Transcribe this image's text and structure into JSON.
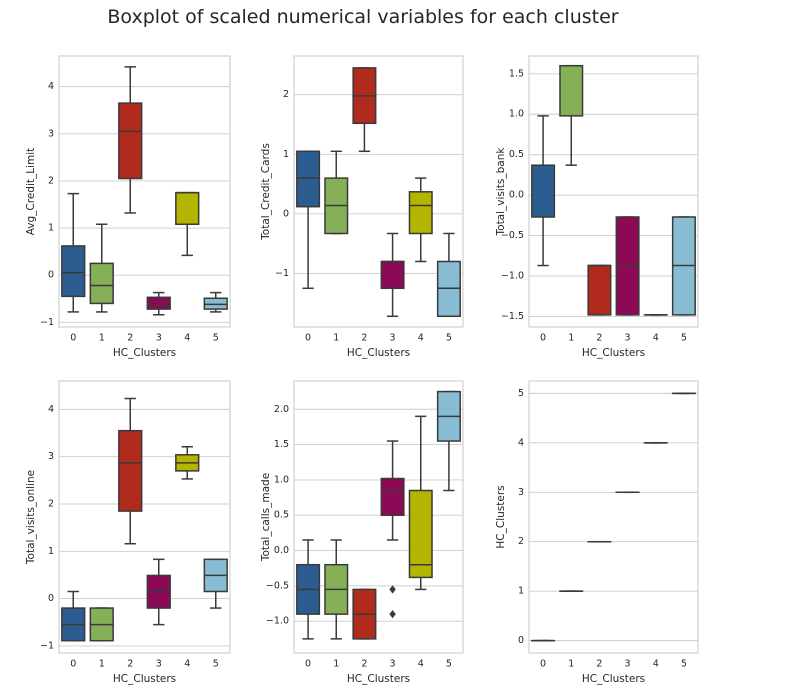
{
  "suptitle": "Boxplot of scaled numerical variables for each cluster",
  "palette": [
    "#2c5d91",
    "#86b058",
    "#b02b1e",
    "#8c0a55",
    "#b4b500",
    "#88bcd2"
  ],
  "chart_data": [
    {
      "type": "box",
      "xlabel": "HC_Clusters",
      "ylabel": "Avg_Credit_Limit",
      "categories": [
        "0",
        "1",
        "2",
        "3",
        "4",
        "5"
      ],
      "ylim": [
        -1.1,
        4.65
      ],
      "yticks": [
        -1,
        0,
        1,
        2,
        3,
        4
      ],
      "ytick_labels": [
        "−1",
        "0",
        "1",
        "2",
        "3",
        "4"
      ],
      "boxes": [
        {
          "whislo": -0.78,
          "q1": -0.45,
          "med": 0.05,
          "q3": 0.62,
          "whishi": 1.73,
          "fliers": []
        },
        {
          "whislo": -0.78,
          "q1": -0.6,
          "med": -0.22,
          "q3": 0.25,
          "whishi": 1.08,
          "fliers": []
        },
        {
          "whislo": 1.32,
          "q1": 2.05,
          "med": 3.05,
          "q3": 3.65,
          "whishi": 4.42,
          "fliers": []
        },
        {
          "whislo": -0.84,
          "q1": -0.72,
          "med": -0.62,
          "q3": -0.47,
          "whishi": -0.37,
          "fliers": []
        },
        {
          "whislo": 0.42,
          "q1": 1.08,
          "med": 1.75,
          "q3": 1.75,
          "whishi": 1.75,
          "fliers": []
        },
        {
          "whislo": -0.78,
          "q1": -0.72,
          "med": -0.62,
          "q3": -0.49,
          "whishi": -0.37,
          "fliers": []
        }
      ]
    },
    {
      "type": "box",
      "xlabel": "HC_Clusters",
      "ylabel": "Total_Credit_Cards",
      "categories": [
        "0",
        "1",
        "2",
        "3",
        "4",
        "5"
      ],
      "ylim": [
        -1.9,
        2.65
      ],
      "yticks": [
        -1,
        0,
        1,
        2
      ],
      "ytick_labels": [
        "−1",
        "0",
        "1",
        "2"
      ],
      "boxes": [
        {
          "whislo": -1.25,
          "q1": 0.12,
          "med": 0.6,
          "q3": 1.05,
          "whishi": 1.05,
          "fliers": []
        },
        {
          "whislo": -0.33,
          "q1": -0.33,
          "med": 0.14,
          "q3": 0.6,
          "whishi": 1.05,
          "fliers": []
        },
        {
          "whislo": 1.05,
          "q1": 1.52,
          "med": 1.98,
          "q3": 2.45,
          "whishi": 2.45,
          "fliers": []
        },
        {
          "whislo": -1.72,
          "q1": -1.25,
          "med": -0.8,
          "q3": -0.8,
          "whishi": -0.33,
          "fliers": []
        },
        {
          "whislo": -0.8,
          "q1": -0.33,
          "med": 0.14,
          "q3": 0.37,
          "whishi": 0.6,
          "fliers": []
        },
        {
          "whislo": -1.72,
          "q1": -1.72,
          "med": -1.25,
          "q3": -0.8,
          "whishi": -0.33,
          "fliers": []
        }
      ]
    },
    {
      "type": "box",
      "xlabel": "HC_Clusters",
      "ylabel": "Total_visits_bank",
      "categories": [
        "0",
        "1",
        "2",
        "3",
        "4",
        "5"
      ],
      "ylim": [
        -1.63,
        1.72
      ],
      "yticks": [
        -1.5,
        -1.0,
        -0.5,
        0.0,
        0.5,
        1.0,
        1.5
      ],
      "ytick_labels": [
        "−1.5",
        "−1.0",
        "−0.5",
        "0.0",
        "0.5",
        "1.0",
        "1.5"
      ],
      "boxes": [
        {
          "whislo": -0.87,
          "q1": -0.27,
          "med": 0.37,
          "q3": 0.37,
          "whishi": 0.98,
          "fliers": []
        },
        {
          "whislo": 0.37,
          "q1": 0.98,
          "med": 1.6,
          "q3": 1.6,
          "whishi": 1.6,
          "fliers": []
        },
        {
          "whislo": -1.48,
          "q1": -1.48,
          "med": -0.87,
          "q3": -0.87,
          "whishi": -0.87,
          "fliers": []
        },
        {
          "whislo": -1.48,
          "q1": -1.48,
          "med": -0.87,
          "q3": -0.27,
          "whishi": -0.27,
          "fliers": []
        },
        {
          "whislo": -1.48,
          "q1": -1.48,
          "med": -1.48,
          "q3": -1.48,
          "whishi": -1.48,
          "fliers": []
        },
        {
          "whislo": -1.48,
          "q1": -1.48,
          "med": -0.87,
          "q3": -0.27,
          "whishi": -0.27,
          "fliers": []
        }
      ]
    },
    {
      "type": "box",
      "xlabel": "HC_Clusters",
      "ylabel": "Total_visits_online",
      "categories": [
        "0",
        "1",
        "2",
        "3",
        "4",
        "5"
      ],
      "ylim": [
        -1.15,
        4.6
      ],
      "yticks": [
        -1,
        0,
        1,
        2,
        3,
        4
      ],
      "ytick_labels": [
        "−1",
        "0",
        "1",
        "2",
        "3",
        "4"
      ],
      "boxes": [
        {
          "whislo": -0.89,
          "q1": -0.89,
          "med": -0.55,
          "q3": -0.2,
          "whishi": 0.15,
          "fliers": []
        },
        {
          "whislo": -0.89,
          "q1": -0.89,
          "med": -0.55,
          "q3": -0.2,
          "whishi": -0.2,
          "fliers": []
        },
        {
          "whislo": 1.16,
          "q1": 1.85,
          "med": 2.87,
          "q3": 3.55,
          "whishi": 4.23,
          "fliers": []
        },
        {
          "whislo": -0.55,
          "q1": -0.2,
          "med": 0.15,
          "q3": 0.49,
          "whishi": 0.83,
          "fliers": []
        },
        {
          "whislo": 2.53,
          "q1": 2.7,
          "med": 2.87,
          "q3": 3.04,
          "whishi": 3.21,
          "fliers": []
        },
        {
          "whislo": -0.2,
          "q1": 0.15,
          "med": 0.49,
          "q3": 0.83,
          "whishi": 0.83,
          "fliers": []
        }
      ]
    },
    {
      "type": "box",
      "xlabel": "HC_Clusters",
      "ylabel": "Total_calls_made",
      "categories": [
        "0",
        "1",
        "2",
        "3",
        "4",
        "5"
      ],
      "ylim": [
        -1.45,
        2.4
      ],
      "yticks": [
        -1.0,
        -0.5,
        0.0,
        0.5,
        1.0,
        1.5,
        2.0
      ],
      "ytick_labels": [
        "−1.0",
        "−0.5",
        "0.0",
        "0.5",
        "1.0",
        "1.5",
        "2.0"
      ],
      "boxes": [
        {
          "whislo": -1.25,
          "q1": -0.9,
          "med": -0.55,
          "q3": -0.2,
          "whishi": 0.15,
          "fliers": []
        },
        {
          "whislo": -1.25,
          "q1": -0.9,
          "med": -0.55,
          "q3": -0.2,
          "whishi": 0.15,
          "fliers": []
        },
        {
          "whislo": -1.25,
          "q1": -1.25,
          "med": -0.9,
          "q3": -0.55,
          "whishi": -0.55,
          "fliers": []
        },
        {
          "whislo": 0.15,
          "q1": 0.5,
          "med": 0.85,
          "q3": 1.02,
          "whishi": 1.55,
          "fliers": [
            -0.55,
            -0.9
          ]
        },
        {
          "whislo": -0.55,
          "q1": -0.38,
          "med": -0.2,
          "q3": 0.85,
          "whishi": 1.9,
          "fliers": []
        },
        {
          "whislo": 0.85,
          "q1": 1.55,
          "med": 1.9,
          "q3": 2.25,
          "whishi": 2.25,
          "fliers": []
        }
      ]
    },
    {
      "type": "box",
      "xlabel": "HC_Clusters",
      "ylabel": "HC_Clusters",
      "categories": [
        "0",
        "1",
        "2",
        "3",
        "4",
        "5"
      ],
      "ylim": [
        -0.25,
        5.25
      ],
      "yticks": [
        0,
        1,
        2,
        3,
        4,
        5
      ],
      "ytick_labels": [
        "0",
        "1",
        "2",
        "3",
        "4",
        "5"
      ],
      "boxes": [
        {
          "whislo": 0,
          "q1": 0,
          "med": 0,
          "q3": 0,
          "whishi": 0,
          "fliers": []
        },
        {
          "whislo": 1,
          "q1": 1,
          "med": 1,
          "q3": 1,
          "whishi": 1,
          "fliers": []
        },
        {
          "whislo": 2,
          "q1": 2,
          "med": 2,
          "q3": 2,
          "whishi": 2,
          "fliers": []
        },
        {
          "whislo": 3,
          "q1": 3,
          "med": 3,
          "q3": 3,
          "whishi": 3,
          "fliers": []
        },
        {
          "whislo": 4,
          "q1": 4,
          "med": 4,
          "q3": 4,
          "whishi": 4,
          "fliers": []
        },
        {
          "whislo": 5,
          "q1": 5,
          "med": 5,
          "q3": 5,
          "whishi": 5,
          "fliers": []
        }
      ]
    }
  ]
}
